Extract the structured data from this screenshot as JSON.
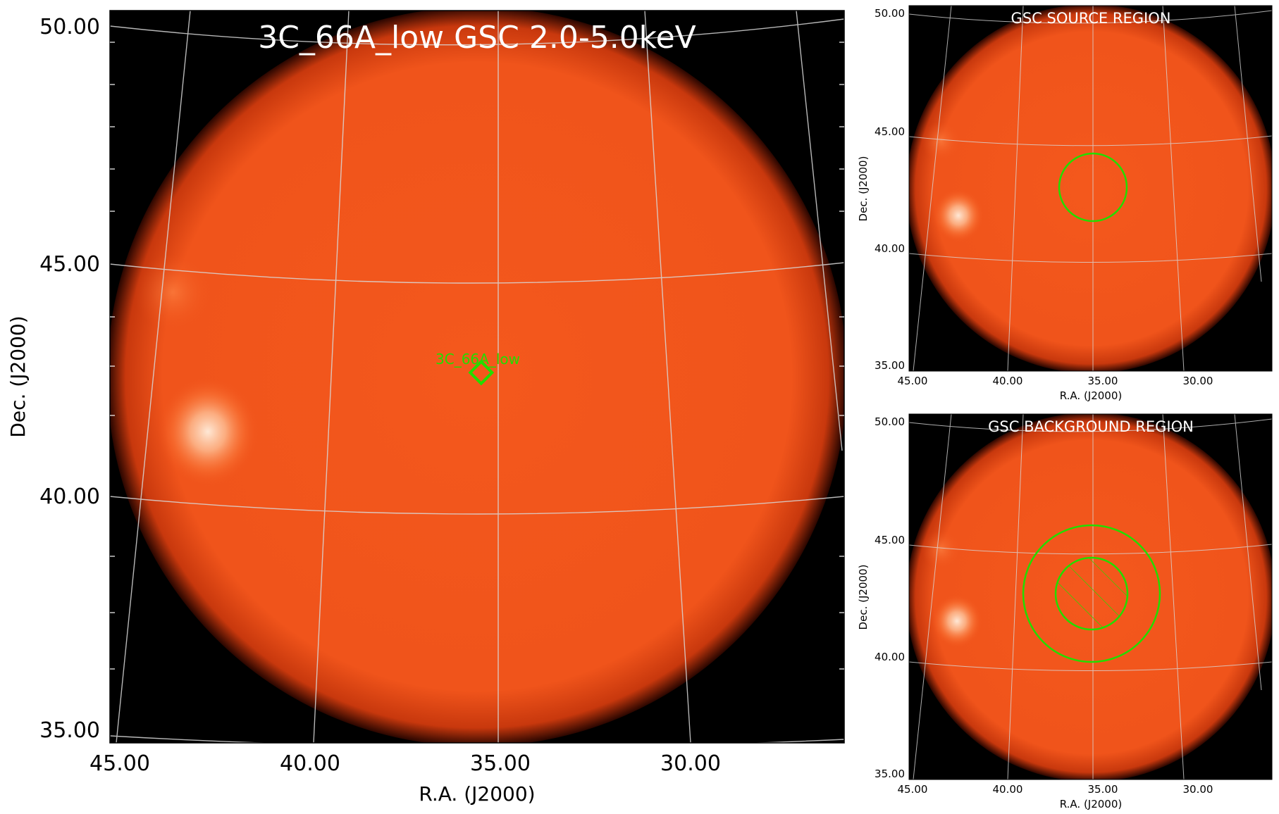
{
  "main_panel": {
    "title": "3C_66A_low GSC 2.0-5.0keV",
    "xlabel": "R.A. (J2000)",
    "ylabel": "Dec. (J2000)",
    "xticks": [
      "45.00",
      "40.00",
      "35.00",
      "30.00"
    ],
    "yticks": [
      "50.00",
      "45.00",
      "40.00",
      "35.00"
    ],
    "source_label": "3C_66A_low"
  },
  "source_panel": {
    "title": "GSC SOURCE REGION",
    "xlabel": "R.A. (J2000)",
    "ylabel": "Dec. (J2000)",
    "xticks": [
      "45.00",
      "40.00",
      "35.00",
      "30.00"
    ],
    "yticks": [
      "50.00",
      "45.00",
      "40.00",
      "35.00"
    ]
  },
  "background_panel": {
    "title": "GSC BACKGROUND REGION",
    "xlabel": "R.A. (J2000)",
    "ylabel": "Dec. (J2000)",
    "xticks": [
      "45.00",
      "40.00",
      "35.00",
      "30.00"
    ],
    "yticks": [
      "50.00",
      "45.00",
      "40.00",
      "35.00"
    ]
  },
  "colors": {
    "disk": "#f0541b",
    "background": "#000000",
    "grid": "#d8d8d8",
    "region": "#22dd00",
    "text": "#ffffff"
  }
}
